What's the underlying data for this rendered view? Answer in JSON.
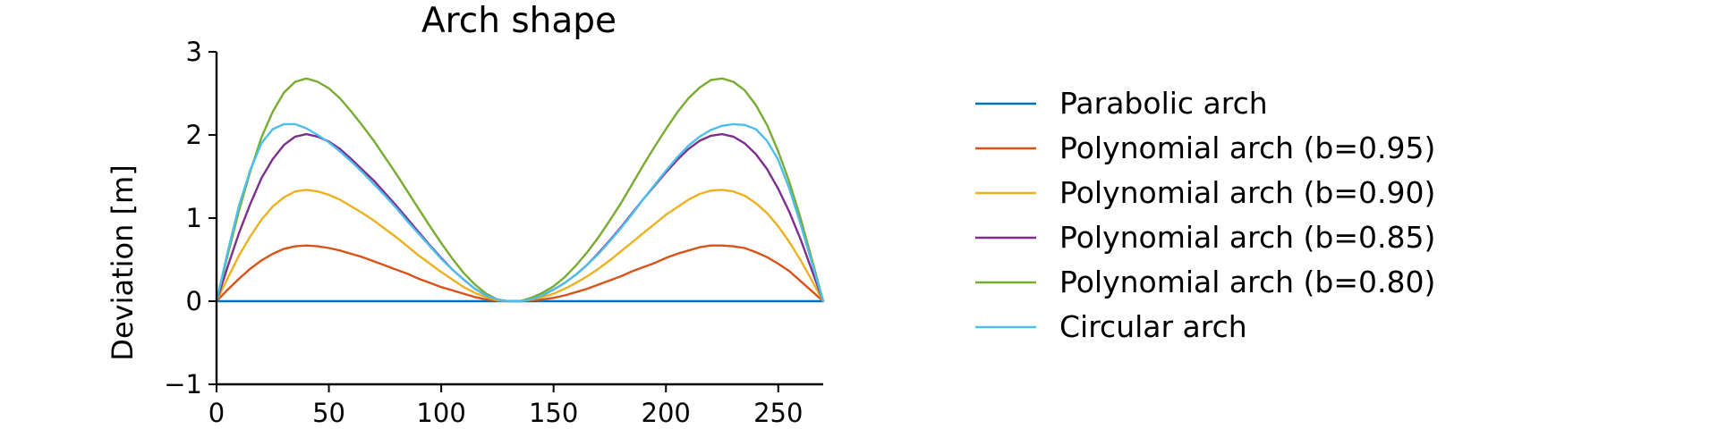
{
  "chart_data": {
    "type": "line",
    "title": "Arch shape",
    "xlabel": "",
    "ylabel": "Deviation [m]",
    "xlim": [
      0,
      270
    ],
    "ylim": [
      -1,
      3
    ],
    "xticks": [
      0,
      50,
      100,
      150,
      200,
      250
    ],
    "yticks": [
      -1,
      0,
      1,
      2,
      3
    ],
    "xtick_labels": [
      "0",
      "50",
      "100",
      "150",
      "200",
      "250"
    ],
    "ytick_labels": [
      "−1",
      "0",
      "1",
      "2",
      "3"
    ],
    "grid": false,
    "legend_position": "right, outside plot",
    "x": [
      0,
      5,
      10,
      15,
      20,
      25,
      30,
      35,
      40,
      45,
      50,
      55,
      60,
      65,
      70,
      75,
      80,
      85,
      90,
      95,
      100,
      105,
      110,
      115,
      120,
      125,
      130,
      135,
      140,
      145,
      150,
      155,
      160,
      165,
      170,
      175,
      180,
      185,
      190,
      195,
      200,
      205,
      210,
      215,
      220,
      225,
      230,
      235,
      240,
      245,
      250,
      255,
      260,
      265,
      270
    ],
    "series": [
      {
        "name": "Parabolic arch",
        "color": "#0072bd",
        "values": [
          0,
          0,
          0,
          0,
          0,
          0,
          0,
          0,
          0,
          0,
          0,
          0,
          0,
          0,
          0,
          0,
          0,
          0,
          0,
          0,
          0,
          0,
          0,
          0,
          0,
          0,
          0,
          0,
          0,
          0,
          0,
          0,
          0,
          0,
          0,
          0,
          0,
          0,
          0,
          0,
          0,
          0,
          0,
          0,
          0,
          0,
          0,
          0,
          0,
          0,
          0,
          0,
          0,
          0,
          0
        ]
      },
      {
        "name": "Polynomial arch (b=0.95)",
        "color": "#d95319",
        "values": [
          0,
          0.14,
          0.27,
          0.39,
          0.49,
          0.57,
          0.63,
          0.66,
          0.67,
          0.66,
          0.64,
          0.61,
          0.57,
          0.53,
          0.48,
          0.43,
          0.38,
          0.33,
          0.27,
          0.22,
          0.17,
          0.13,
          0.09,
          0.05,
          0.02,
          0.01,
          0,
          0,
          0.01,
          0.02,
          0.04,
          0.07,
          0.11,
          0.15,
          0.2,
          0.25,
          0.3,
          0.36,
          0.41,
          0.46,
          0.52,
          0.57,
          0.61,
          0.65,
          0.67,
          0.67,
          0.66,
          0.64,
          0.59,
          0.53,
          0.45,
          0.36,
          0.24,
          0.12,
          0
        ]
      },
      {
        "name": "Polynomial arch (b=0.90)",
        "color": "#edb120",
        "values": [
          0,
          0.28,
          0.55,
          0.78,
          0.98,
          1.14,
          1.25,
          1.32,
          1.34,
          1.32,
          1.28,
          1.22,
          1.14,
          1.06,
          0.97,
          0.87,
          0.77,
          0.66,
          0.55,
          0.45,
          0.35,
          0.26,
          0.17,
          0.1,
          0.05,
          0.01,
          0,
          0,
          0.02,
          0.05,
          0.09,
          0.15,
          0.22,
          0.3,
          0.39,
          0.49,
          0.6,
          0.71,
          0.82,
          0.93,
          1.04,
          1.13,
          1.22,
          1.29,
          1.33,
          1.34,
          1.32,
          1.27,
          1.18,
          1.06,
          0.9,
          0.71,
          0.49,
          0.25,
          0
        ]
      },
      {
        "name": "Polynomial arch (b=0.85)",
        "color": "#7e2f8e",
        "values": [
          0,
          0.42,
          0.82,
          1.17,
          1.48,
          1.71,
          1.88,
          1.98,
          2.01,
          1.98,
          1.92,
          1.83,
          1.71,
          1.58,
          1.45,
          1.3,
          1.15,
          0.99,
          0.83,
          0.67,
          0.52,
          0.38,
          0.26,
          0.15,
          0.07,
          0.02,
          0,
          0,
          0.03,
          0.07,
          0.14,
          0.22,
          0.32,
          0.44,
          0.58,
          0.73,
          0.89,
          1.06,
          1.23,
          1.39,
          1.55,
          1.7,
          1.83,
          1.93,
          1.99,
          2.01,
          1.98,
          1.9,
          1.77,
          1.59,
          1.35,
          1.07,
          0.74,
          0.37,
          0
        ]
      },
      {
        "name": "Polynomial arch (b=0.80)",
        "color": "#77ac30",
        "values": [
          0,
          0.56,
          1.09,
          1.56,
          1.97,
          2.28,
          2.51,
          2.64,
          2.68,
          2.64,
          2.56,
          2.44,
          2.28,
          2.11,
          1.93,
          1.73,
          1.53,
          1.32,
          1.11,
          0.9,
          0.7,
          0.51,
          0.34,
          0.2,
          0.09,
          0.02,
          0,
          0,
          0.04,
          0.1,
          0.18,
          0.29,
          0.43,
          0.59,
          0.77,
          0.97,
          1.18,
          1.41,
          1.64,
          1.86,
          2.07,
          2.27,
          2.44,
          2.57,
          2.66,
          2.68,
          2.64,
          2.54,
          2.36,
          2.12,
          1.8,
          1.43,
          0.99,
          0.5,
          0
        ]
      },
      {
        "name": "Circular arch",
        "color": "#4dbeee",
        "values": [
          0,
          0.6,
          1.15,
          1.58,
          1.9,
          2.07,
          2.13,
          2.13,
          2.08,
          2.0,
          1.91,
          1.8,
          1.68,
          1.55,
          1.41,
          1.27,
          1.12,
          0.96,
          0.81,
          0.66,
          0.51,
          0.38,
          0.26,
          0.15,
          0.07,
          0.02,
          0,
          0,
          0.02,
          0.07,
          0.14,
          0.22,
          0.32,
          0.44,
          0.57,
          0.72,
          0.88,
          1.05,
          1.23,
          1.4,
          1.57,
          1.73,
          1.87,
          1.98,
          2.06,
          2.11,
          2.13,
          2.12,
          2.07,
          1.93,
          1.7,
          1.35,
          0.92,
          0.46,
          0
        ]
      }
    ]
  }
}
